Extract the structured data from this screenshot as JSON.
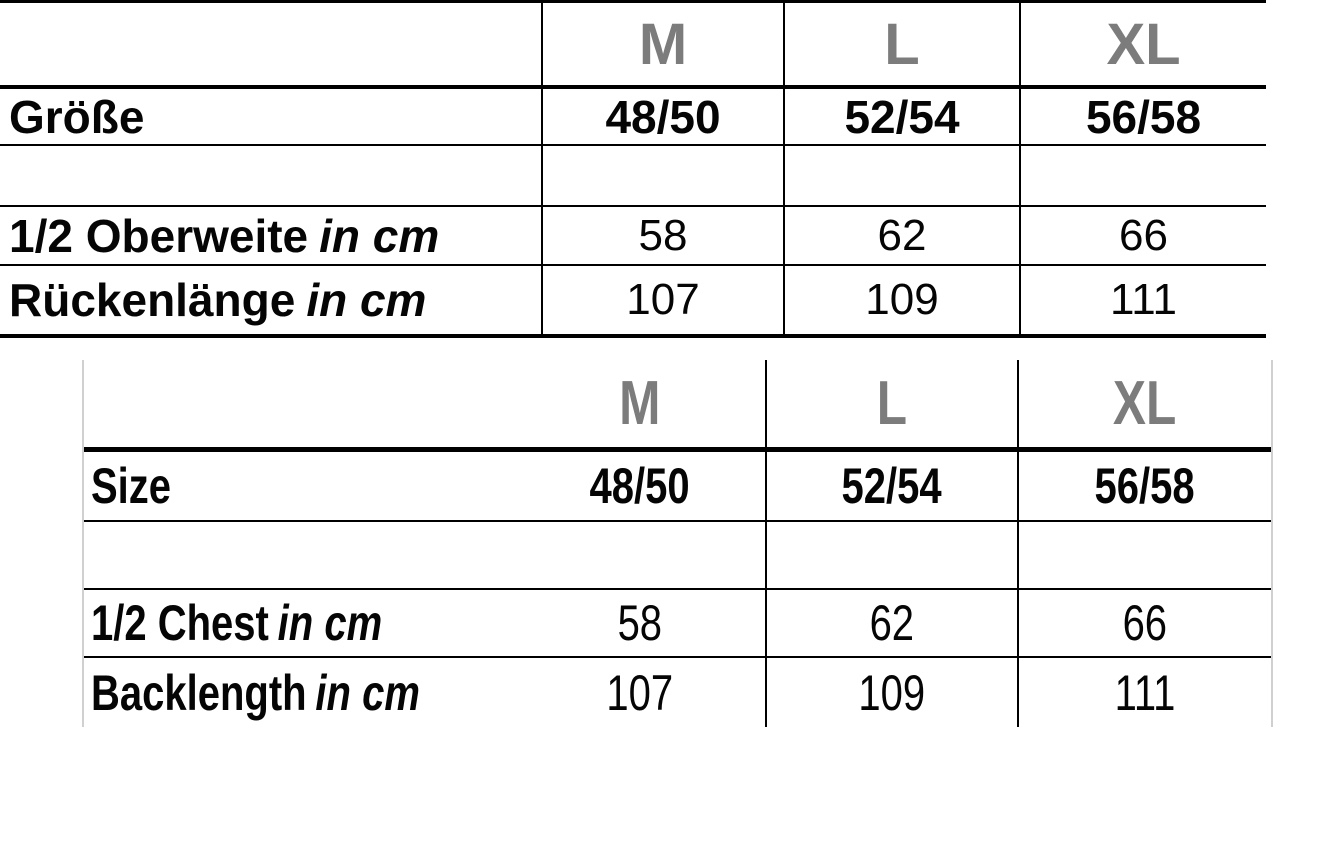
{
  "colors": {
    "header_gray": "#7c7c7c",
    "text_black": "#050505",
    "grid_line_black": "#000000",
    "faint_border_gray": "#d0d0d0",
    "background": "#ffffff"
  },
  "table_de": {
    "header": [
      "M",
      "L",
      "XL"
    ],
    "size_row": {
      "label": "Größe",
      "values": [
        "48/50",
        "52/54",
        "56/58"
      ]
    },
    "rows": [
      {
        "label": "1/2 Oberweite",
        "unit": "in cm",
        "values": [
          "58",
          "62",
          "66"
        ]
      },
      {
        "label": "Rückenlänge",
        "unit": "in cm",
        "values": [
          "107",
          "109",
          "111"
        ]
      }
    ]
  },
  "table_en": {
    "header": [
      "M",
      "L",
      "XL"
    ],
    "size_row": {
      "label": "Size",
      "values": [
        "48/50",
        "52/54",
        "56/58"
      ]
    },
    "rows": [
      {
        "label": "1/2 Chest",
        "unit": "in cm",
        "values": [
          "58",
          "62",
          "66"
        ]
      },
      {
        "label": "Backlength",
        "unit": "in cm",
        "values": [
          "107",
          "109",
          "111"
        ]
      }
    ]
  }
}
